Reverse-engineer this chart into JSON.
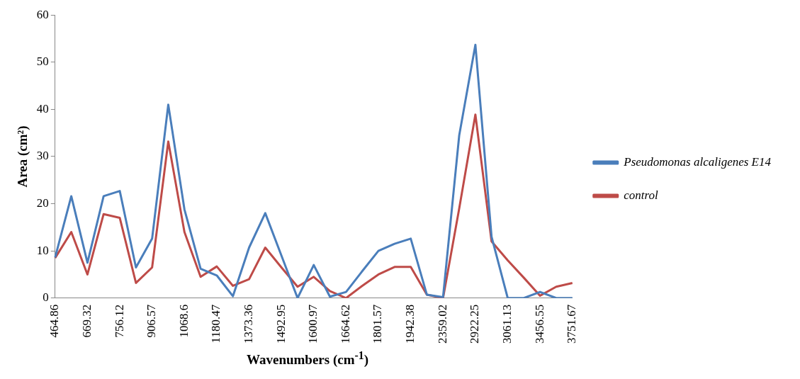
{
  "chart_data": {
    "type": "line",
    "xlabel": "Wavenumbers (cm$^{-1}$)",
    "ylabel": "Area (cm²)",
    "categories": [
      "464.86",
      null,
      "669.32",
      null,
      "756.12",
      null,
      "906.57",
      null,
      "1068.6",
      null,
      "1180.47",
      null,
      "1373.36",
      null,
      "1492.95",
      null,
      "1600.97",
      null,
      "1664.62",
      null,
      "1801.57",
      null,
      "1942.38",
      null,
      "2359.02",
      null,
      "2922.25",
      null,
      "3061.13",
      null,
      "3456.55",
      null,
      "3751.67"
    ],
    "series": [
      {
        "name": "Pseudomonas alcaligenes E14",
        "color": "#4a7ebb",
        "values": [
          8.6,
          21.6,
          7.5,
          21.6,
          22.7,
          6.5,
          12.6,
          41,
          18.8,
          6.2,
          4.8,
          0.4,
          10.7,
          18,
          9,
          0,
          7,
          0.3,
          1.3,
          5.7,
          10,
          11.5,
          12.6,
          0.7,
          0.2,
          34.5,
          53.7,
          13,
          0,
          0,
          1.3,
          0,
          0
        ]
      },
      {
        "name": "control",
        "color": "#be4b48",
        "values": [
          8.5,
          14,
          5,
          17.8,
          17,
          3.2,
          6.5,
          33.2,
          14,
          4.5,
          6.7,
          2.6,
          4,
          10.7,
          6.5,
          2.4,
          4.5,
          1.5,
          0,
          2.6,
          5,
          6.6,
          6.6,
          0.7,
          0,
          19,
          38.9,
          12,
          8,
          4.3,
          0.5,
          2.4,
          3.2
        ]
      }
    ],
    "ylim": [
      0,
      60
    ],
    "yticks": [
      0,
      10,
      20,
      30,
      40,
      50,
      60
    ],
    "grid": false,
    "legend": "right",
    "marker": "none",
    "line_style": "solid"
  }
}
